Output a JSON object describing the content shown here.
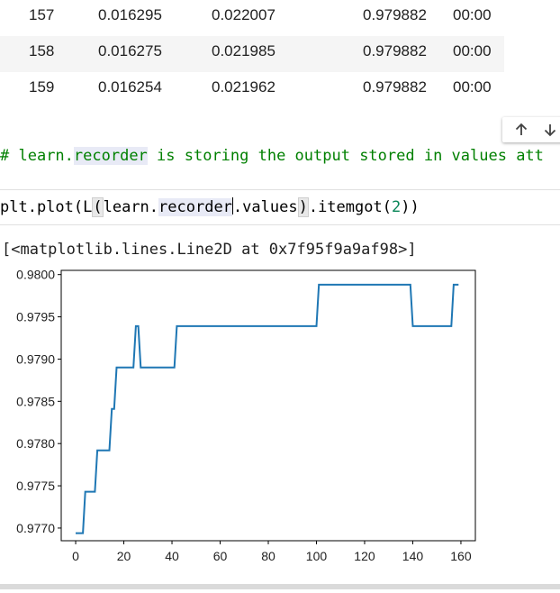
{
  "table": {
    "rows": [
      {
        "epoch": "157",
        "train_loss": "0.016295",
        "valid_loss": "0.022007",
        "metric": "0.979882",
        "time": "00:00"
      },
      {
        "epoch": "158",
        "train_loss": "0.016275",
        "valid_loss": "0.021985",
        "metric": "0.979882",
        "time": "00:00"
      },
      {
        "epoch": "159",
        "train_loss": "0.016254",
        "valid_loss": "0.021962",
        "metric": "0.979882",
        "time": "00:00"
      }
    ]
  },
  "toolbar": {
    "up_icon": "arrow-up-icon",
    "down_icon": "arrow-down-icon"
  },
  "comment": {
    "prefix": "# ",
    "learn": "learn.",
    "recorder": "recorder",
    "rest": " is storing the output stored in values att"
  },
  "code": {
    "a": "plt.plot(L",
    "open": "(",
    "b": "learn.",
    "c": "recorder",
    "d": ".values",
    "close": ")",
    "e": ".itemgot(",
    "num": "2",
    "f": "))"
  },
  "output": {
    "repr": "[<matplotlib.lines.Line2D at 0x7f95f9a9af98>]"
  },
  "colors": {
    "line": "#1f77b4",
    "comment": "#008000",
    "number": "#098658"
  },
  "chart_data": {
    "type": "line",
    "xlim": [
      -6,
      166
    ],
    "ylim": [
      0.97685,
      0.98005
    ],
    "xticks": [
      0,
      20,
      40,
      60,
      80,
      100,
      120,
      140,
      160
    ],
    "yticks": [
      0.977,
      0.9775,
      0.978,
      0.9785,
      0.979,
      0.9795,
      0.98
    ],
    "ytick_labels": [
      "0.9770",
      "0.9775",
      "0.9780",
      "0.9785",
      "0.9790",
      "0.9795",
      "0.9800"
    ],
    "grid": false,
    "series": [
      {
        "x": [
          0,
          3,
          4,
          8,
          9,
          10,
          14,
          15,
          16,
          17,
          18,
          24,
          25,
          26,
          27,
          41,
          42,
          100,
          101,
          139,
          140,
          156,
          157,
          159
        ],
        "y": [
          0.97694,
          0.97694,
          0.97743,
          0.97743,
          0.97792,
          0.97792,
          0.97792,
          0.97841,
          0.97841,
          0.9789,
          0.9789,
          0.9789,
          0.97939,
          0.97939,
          0.9789,
          0.9789,
          0.97939,
          0.97939,
          0.97988,
          0.97988,
          0.97939,
          0.97939,
          0.97988,
          0.97988
        ]
      }
    ]
  }
}
